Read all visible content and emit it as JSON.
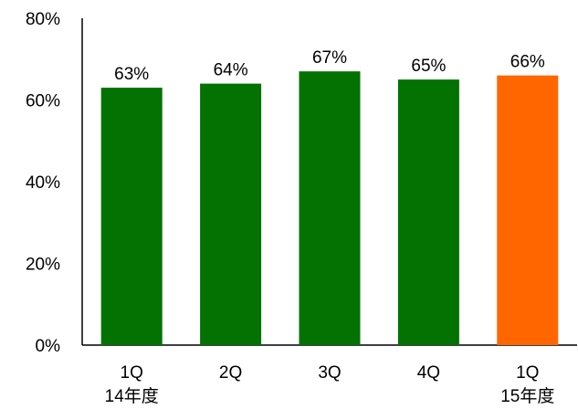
{
  "chart_data": {
    "type": "bar",
    "categories": [
      {
        "line1": "1Q",
        "line2": "14年度"
      },
      {
        "line1": "2Q",
        "line2": ""
      },
      {
        "line1": "3Q",
        "line2": ""
      },
      {
        "line1": "4Q",
        "line2": ""
      },
      {
        "line1": "1Q",
        "line2": "15年度"
      }
    ],
    "values": [
      63,
      64,
      67,
      65,
      66
    ],
    "data_labels": [
      "63%",
      "64%",
      "67%",
      "65%",
      "66%"
    ],
    "bar_colors": [
      "#037203",
      "#037203",
      "#037203",
      "#037203",
      "#FF6600"
    ],
    "ylim": [
      0,
      80
    ],
    "yticks": [
      0,
      20,
      40,
      60,
      80
    ],
    "ytick_labels": [
      "0%",
      "20%",
      "40%",
      "60%",
      "80%"
    ],
    "title": "",
    "xlabel": "",
    "ylabel": "",
    "grid": false,
    "legend": "none"
  }
}
